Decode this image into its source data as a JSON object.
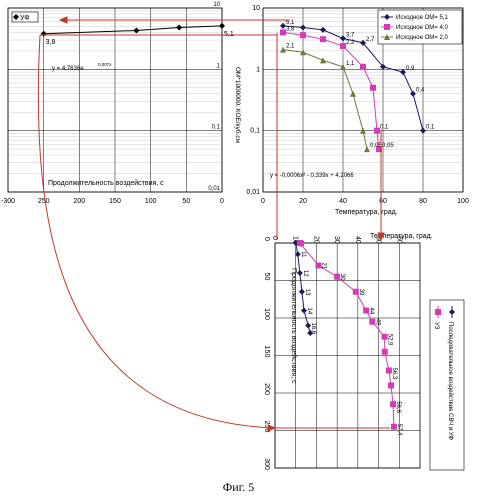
{
  "caption": "Фиг. 5",
  "chart_data": [
    {
      "type": "line",
      "id": "left-panel",
      "x_reversed": true,
      "xlim": [
        -300,
        0
      ],
      "ylim": [
        0.01,
        10
      ],
      "y_log": true,
      "x_ticks": [
        "-300",
        "250",
        "200",
        "150",
        "100",
        "50",
        "0"
      ],
      "y_ticks": [
        "10",
        "1",
        "0,1",
        "0,01"
      ],
      "legend": "УФ",
      "xlabel": "Продолжительность воздействия, с",
      "equation": "y = 4,7636e",
      "equation_exp": "0,007x",
      "series": [
        {
          "name": "УФ",
          "points": [
            [
              -250,
              3.8
            ],
            [
              -120,
              4.3
            ],
            [
              -60,
              4.8
            ],
            [
              0,
              5.1
            ]
          ],
          "labels": [
            "3,8",
            "",
            "",
            "5,1"
          ],
          "color": "#000000"
        }
      ]
    },
    {
      "type": "line",
      "id": "right-panel",
      "xlim": [
        0,
        100
      ],
      "ylim": [
        0.01,
        10
      ],
      "y_log": true,
      "x_ticks": [
        "0",
        "20",
        "40",
        "60",
        "80",
        "100"
      ],
      "y_ticks": [
        "10",
        "1",
        "0,1",
        "0,01"
      ],
      "xlabel": "Температура, град.",
      "ylabel": "ОМ*1000000, КОЕ/куб.см",
      "equation": "y = -0,0006x² - 0,339x + 4,2066",
      "series": [
        {
          "name": "Исходное ОМ= 5,1",
          "color": "#1a1a5e",
          "marker": "diamond",
          "points": [
            [
              10,
              5.1
            ],
            [
              20,
              4.8
            ],
            [
              30,
              4.4
            ],
            [
              40,
              3.2
            ],
            [
              50,
              2.7
            ],
            [
              60,
              1.1
            ],
            [
              70,
              0.9
            ],
            [
              75,
              0.4
            ],
            [
              80,
              0.1
            ]
          ],
          "labels": [
            "5,1",
            "",
            "",
            "3,7",
            "2,7",
            "",
            "0,9",
            "0,4",
            "0,1"
          ]
        },
        {
          "name": "Исходное ОМ= 4,0",
          "color": "#d63ab8",
          "marker": "square",
          "points": [
            [
              10,
              4.0
            ],
            [
              20,
              3.6
            ],
            [
              30,
              3.1
            ],
            [
              40,
              2.4
            ],
            [
              50,
              1.1
            ],
            [
              55,
              0.5
            ],
            [
              57,
              0.1
            ],
            [
              58,
              0.05
            ]
          ],
          "labels": [
            "3,8",
            "",
            "",
            "2,2",
            "",
            "",
            "0,1",
            "0,05"
          ]
        },
        {
          "name": "Исходное ОМ= 2,0",
          "color": "#6d7a3a",
          "marker": "triangle",
          "points": [
            [
              10,
              2.1
            ],
            [
              20,
              1.9
            ],
            [
              30,
              1.4
            ],
            [
              40,
              1.1
            ],
            [
              45,
              0.4
            ],
            [
              50,
              0.1
            ],
            [
              52,
              0.05
            ]
          ],
          "labels": [
            "2,1",
            "",
            "",
            "1,1",
            "",
            "",
            "0,05"
          ]
        }
      ]
    },
    {
      "type": "line",
      "id": "bottom-panel",
      "rotated": true,
      "xlim": [
        0,
        300
      ],
      "ylim": [
        0,
        70
      ],
      "x_ticks": [
        "0",
        "50",
        "100",
        "150",
        "200",
        "250",
        "300"
      ],
      "y_ticks": [
        "0",
        "10",
        "20",
        "30",
        "40",
        "50",
        "60"
      ],
      "xlabel": "Продолжительность воздействия, с",
      "ylabel": "Температура, град.",
      "series": [
        {
          "name": "Последовательное воздействие СВЧ и УФ",
          "color": "#1a1a5e",
          "marker": "diamond",
          "points": [
            [
              0,
              10
            ],
            [
              15,
              11
            ],
            [
              40,
              12
            ],
            [
              65,
              13
            ],
            [
              90,
              14
            ],
            [
              110,
              16
            ],
            [
              120,
              17
            ]
          ],
          "labels": [
            "10",
            "11",
            "12",
            "13",
            "14",
            "16,6",
            ""
          ]
        },
        {
          "name": "УЗ",
          "color": "#d63ab8",
          "marker": "square",
          "points": [
            [
              0,
              12
            ],
            [
              30,
              21
            ],
            [
              45,
              30
            ],
            [
              65,
              39
            ],
            [
              90,
              44
            ],
            [
              105,
              47
            ],
            [
              125,
              52.9
            ],
            [
              145,
              53
            ],
            [
              170,
              55
            ],
            [
              190,
              56
            ],
            [
              215,
              57
            ],
            [
              245,
              57.4
            ]
          ],
          "labels": [
            "",
            "21",
            "30",
            "39",
            "44",
            "49",
            "52,9",
            "",
            "56,3",
            "",
            "56,6",
            "57,4"
          ]
        }
      ]
    }
  ]
}
